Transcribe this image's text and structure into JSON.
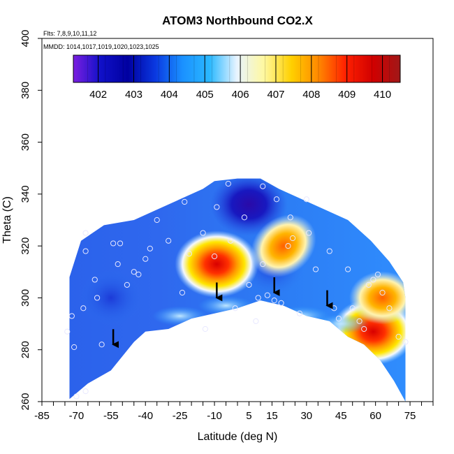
{
  "chart_data": {
    "type": "heatmap",
    "title": "ATOM3 Northbound CO2.X",
    "xlabel": "Latitude (deg N)",
    "ylabel": "Theta (C)",
    "notes": {
      "flights": "Flts: 7,8,9,10,11,12",
      "dates": "MMDD: 1014,1017,1019,1020,1023,1025"
    },
    "xlim": [
      -85,
      85
    ],
    "ylim": [
      260,
      400
    ],
    "x_tick_values": [
      -85,
      -70,
      -55,
      -40,
      -25,
      -10,
      5,
      15,
      30,
      45,
      60,
      75
    ],
    "x_ticks": [
      "-85",
      "-70",
      "-55",
      "-40",
      "-25",
      "-10",
      "5",
      "15",
      "30",
      "45",
      "60",
      "75"
    ],
    "x_minor_ticks": [
      -80,
      -75,
      -65,
      -60,
      -50,
      -45,
      -35,
      -30,
      -20,
      -15,
      -5,
      0,
      10,
      20,
      25,
      35,
      40,
      50,
      55,
      65,
      70,
      80,
      85
    ],
    "y_ticks": [
      260,
      280,
      300,
      320,
      340,
      360,
      380,
      400
    ],
    "colorbar": {
      "range": [
        401.3,
        410.5
      ],
      "labels": [
        402,
        403,
        404,
        405,
        406,
        407,
        408,
        409,
        410
      ],
      "stops": [
        "#7b1fe0",
        "#1010c8",
        "#0000a0",
        "#0a38e0",
        "#1a90ff",
        "#2ab8ff",
        "#e8f4ff",
        "#fff8a0",
        "#ffd000",
        "#ff8800",
        "#ff2000",
        "#d00000",
        "#a01818"
      ]
    },
    "domain_top": [
      [
        -73,
        308
      ],
      [
        -68,
        322
      ],
      [
        -58,
        328
      ],
      [
        -45,
        330
      ],
      [
        -35,
        334
      ],
      [
        -25,
        338
      ],
      [
        -15,
        342
      ],
      [
        -10,
        345
      ],
      [
        0,
        346
      ],
      [
        10,
        346
      ],
      [
        18,
        342
      ],
      [
        28,
        338
      ],
      [
        38,
        334
      ],
      [
        48,
        330
      ],
      [
        58,
        322
      ],
      [
        66,
        314
      ],
      [
        72,
        306
      ],
      [
        73,
        300
      ]
    ],
    "domain_bottom": [
      [
        -73,
        261
      ],
      [
        -65,
        267
      ],
      [
        -55,
        272
      ],
      [
        -45,
        283
      ],
      [
        -40,
        287
      ],
      [
        -30,
        288
      ],
      [
        -20,
        292
      ],
      [
        -10,
        294
      ],
      [
        0,
        296
      ],
      [
        10,
        299
      ],
      [
        20,
        297
      ],
      [
        30,
        293
      ],
      [
        40,
        291
      ],
      [
        48,
        285
      ],
      [
        55,
        282
      ],
      [
        62,
        276
      ],
      [
        68,
        268
      ],
      [
        73,
        260
      ]
    ],
    "hotspots": [
      {
        "lat": -9,
        "theta": 313,
        "co2": 410.0
      },
      {
        "lat": 20,
        "theta": 320,
        "co2": 408.5
      },
      {
        "lat": 59,
        "theta": 287,
        "co2": 410.0
      },
      {
        "lat": 63,
        "theta": 300,
        "co2": 408.0
      }
    ],
    "low_regions": [
      {
        "lat": 5,
        "theta": 336,
        "co2": 402.5
      },
      {
        "lat": 15,
        "theta": 312,
        "co2": 403.2
      },
      {
        "lat": -55,
        "theta": 300,
        "co2": 404.0
      }
    ],
    "arrows": [
      {
        "lat": -54,
        "theta": 282
      },
      {
        "lat": -9,
        "theta": 300
      },
      {
        "lat": 16,
        "theta": 302
      },
      {
        "lat": 39,
        "theta": 297
      }
    ],
    "sample_points": [
      [
        -70,
        262
      ],
      [
        -66,
        264
      ],
      [
        -71,
        281
      ],
      [
        -74,
        287
      ],
      [
        -72,
        293
      ],
      [
        -67,
        296
      ],
      [
        -59,
        282
      ],
      [
        -61,
        300
      ],
      [
        -62,
        307
      ],
      [
        -66,
        318
      ],
      [
        -66,
        325
      ],
      [
        -54,
        321
      ],
      [
        -51,
        321
      ],
      [
        -52,
        313
      ],
      [
        -48,
        305
      ],
      [
        -45,
        310
      ],
      [
        -43,
        309
      ],
      [
        -40,
        315
      ],
      [
        -38,
        319
      ],
      [
        -35,
        330
      ],
      [
        -30,
        322
      ],
      [
        -24,
        302
      ],
      [
        -21,
        317
      ],
      [
        -15,
        325
      ],
      [
        -14,
        288
      ],
      [
        -10,
        316
      ],
      [
        -3,
        322
      ],
      [
        -1,
        296
      ],
      [
        3,
        331
      ],
      [
        5,
        305
      ],
      [
        8,
        291
      ],
      [
        9,
        300
      ],
      [
        11,
        313
      ],
      [
        13,
        301
      ],
      [
        16,
        299
      ],
      [
        19,
        298
      ],
      [
        22,
        320
      ],
      [
        24,
        323
      ],
      [
        27,
        294
      ],
      [
        31,
        325
      ],
      [
        34,
        311
      ],
      [
        40,
        318
      ],
      [
        42,
        296
      ],
      [
        44,
        292
      ],
      [
        48,
        311
      ],
      [
        50,
        296
      ],
      [
        53,
        291
      ],
      [
        55,
        288
      ],
      [
        57,
        305
      ],
      [
        59,
        307
      ],
      [
        61,
        309
      ],
      [
        63,
        302
      ],
      [
        66,
        296
      ],
      [
        70,
        285
      ],
      [
        73,
        283
      ],
      [
        -9,
        335
      ],
      [
        -4,
        344
      ],
      [
        11,
        343
      ],
      [
        17,
        338
      ],
      [
        23,
        331
      ],
      [
        30,
        338
      ],
      [
        -23,
        337
      ]
    ]
  }
}
